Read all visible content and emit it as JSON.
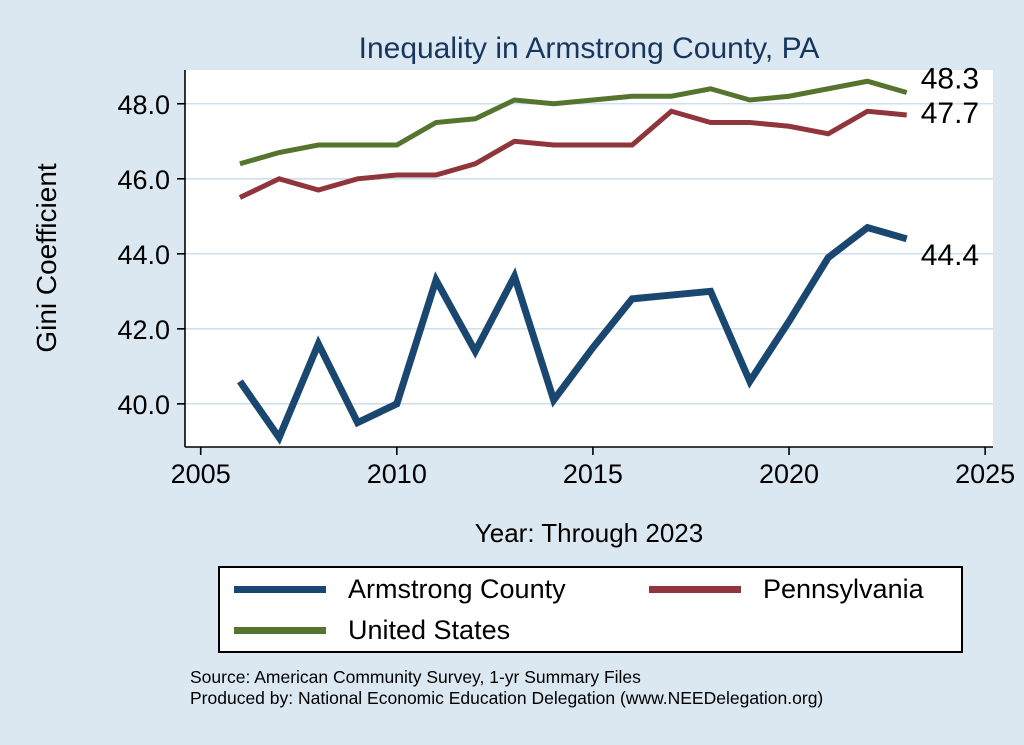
{
  "chart_data": {
    "type": "line",
    "title": "Inequality in Armstrong County, PA",
    "xlabel": "Year: Through 2023",
    "ylabel": "Gini Coefficient",
    "grid": true,
    "legend_position": "bottom",
    "xlim": [
      2004.6,
      2025.2
    ],
    "ylim": [
      38.85,
      48.9
    ],
    "x": [
      2006,
      2007,
      2008,
      2009,
      2010,
      2011,
      2012,
      2013,
      2014,
      2015,
      2016,
      2017,
      2018,
      2019,
      2020,
      2021,
      2022,
      2023
    ],
    "x_ticks": {
      "values": [
        2005,
        2010,
        2015,
        2020,
        2025
      ],
      "labels": [
        "2005",
        "2010",
        "2015",
        "2020",
        "2025"
      ]
    },
    "y_ticks": {
      "values": [
        40,
        42,
        44,
        46,
        48
      ],
      "labels": [
        "40.0",
        "42.0",
        "44.0",
        "46.0",
        "48.0"
      ]
    },
    "series": [
      {
        "name": "Armstrong County",
        "color": "#1a476f",
        "end_label": "44.4",
        "values": [
          40.6,
          39.1,
          41.6,
          39.5,
          40.0,
          43.3,
          41.4,
          43.4,
          40.1,
          41.5,
          42.8,
          42.9,
          43.0,
          40.6,
          42.2,
          43.9,
          44.7,
          44.4
        ]
      },
      {
        "name": "Pennsylvania",
        "color": "#90353b",
        "end_label": "47.7",
        "values": [
          45.5,
          46.0,
          45.7,
          46.0,
          46.1,
          46.1,
          46.4,
          47.0,
          46.9,
          46.9,
          46.9,
          47.8,
          47.5,
          47.5,
          47.4,
          47.2,
          47.8,
          47.7
        ]
      },
      {
        "name": "United States",
        "color": "#55752f",
        "end_label": "48.3",
        "values": [
          46.4,
          46.7,
          46.9,
          46.9,
          46.9,
          47.5,
          47.6,
          48.1,
          48.0,
          48.1,
          48.2,
          48.2,
          48.4,
          48.1,
          48.2,
          48.4,
          48.6,
          48.3
        ]
      }
    ]
  },
  "footer": {
    "source": "Source: American Community Survey, 1-yr Summary Files",
    "produced_by": "Produced by: National Economic Education Delegation (www.NEEDelegation.org)"
  }
}
